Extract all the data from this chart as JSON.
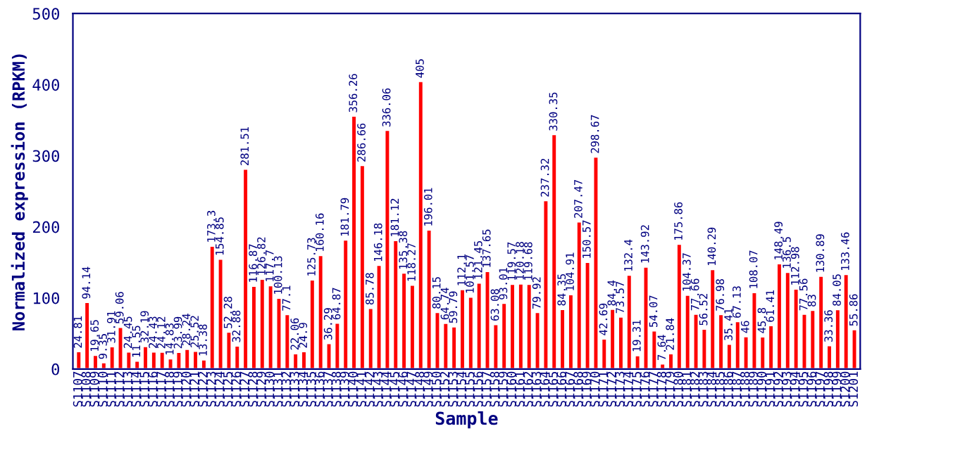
{
  "chart_data": {
    "type": "bar",
    "xlabel": "Sample",
    "ylabel": "Normalized expression (RPKM)",
    "categories": [
      "S1107",
      "S1108",
      "S1109",
      "S1110",
      "S1111",
      "S1112",
      "S1113",
      "S1114",
      "S1115",
      "S1116",
      "S1117",
      "S1118",
      "S1119",
      "S1120",
      "S1121",
      "S1122",
      "S1123",
      "S1124",
      "S1125",
      "S1126",
      "S1127",
      "S1128",
      "S1129",
      "S1130",
      "S1131",
      "S1132",
      "S1133",
      "S1134",
      "S1135",
      "S1136",
      "S1137",
      "S1138",
      "S1139",
      "S1140",
      "S1141",
      "S1142",
      "S1143",
      "S1144",
      "S1145",
      "S1146",
      "S1147",
      "S1148",
      "S1149",
      "S1150",
      "S1152",
      "S1153",
      "S1154",
      "S1155",
      "S1156",
      "S1157",
      "S1158",
      "S1159",
      "S1160",
      "S1161",
      "S1162",
      "S1163",
      "S1164",
      "S1165",
      "S1166",
      "S1167",
      "S1168",
      "S1169",
      "S1170",
      "S1171",
      "S1172",
      "S1173",
      "S1174",
      "S1175",
      "S1176",
      "S1177",
      "S1178",
      "S1179",
      "S1180",
      "S1181",
      "S1182",
      "S1183",
      "S1184",
      "S1185",
      "S1186",
      "S1187",
      "S1188",
      "S1189",
      "S1190",
      "S1191",
      "S1192",
      "S1193",
      "S1194",
      "S1195",
      "S1196",
      "S1197",
      "S1198",
      "S1199",
      "S1200",
      "S1201"
    ],
    "values": [
      24.81,
      94.14,
      19.65,
      9.35,
      31.91,
      59.06,
      24.45,
      11.55,
      32.19,
      24.43,
      24.12,
      14.83,
      23.99,
      28.24,
      25.52,
      13.38,
      173.3,
      154.85,
      52.28,
      32.88,
      281.51,
      116.87,
      126.82,
      117.7,
      100.13,
      77.1,
      22.06,
      24.9,
      125.73,
      160.16,
      36.29,
      64.87,
      181.79,
      356.26,
      286.66,
      85.78,
      146.18,
      336.06,
      181.12,
      135.38,
      118.27,
      405,
      196.01,
      80.15,
      64.74,
      59.79,
      112.1,
      101.57,
      121.45,
      137.65,
      63.08,
      93.01,
      119.57,
      120.18,
      119.68,
      79.92,
      237.32,
      330.35,
      84.35,
      104.91,
      207.47,
      150.57,
      298.67,
      42.69,
      84.4,
      73.57,
      132.4,
      19.31,
      143.92,
      54.07,
      7.64,
      21.84,
      175.86,
      104.37,
      77.66,
      56.52,
      140.29,
      76.98,
      35.41,
      67.13,
      46,
      108.07,
      45.8,
      61.41,
      148.49,
      136.5,
      112.98,
      77.56,
      83,
      130.89,
      33.36,
      84.05,
      133.46,
      55.86
    ],
    "color": "#ff0000",
    "data_labels": true,
    "ylim": [
      0,
      500
    ],
    "yticks": [
      0,
      100,
      200,
      300,
      400,
      500
    ],
    "grid": false,
    "legend": false
  }
}
